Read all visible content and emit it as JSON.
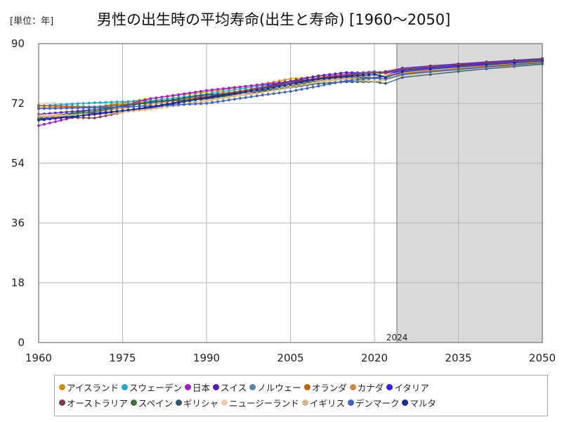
{
  "header": {
    "unit_label": "[単位：年]",
    "title": "男性の出生時の平均寿命(出生と寿命) [1960～2050]"
  },
  "chart_data": {
    "type": "line",
    "xlim": [
      1960,
      2050
    ],
    "ylim": [
      0,
      90
    ],
    "x_ticks": [
      1960,
      1975,
      1990,
      2005,
      2020,
      2035,
      2050
    ],
    "y_ticks": [
      0,
      18,
      36,
      54,
      72,
      90
    ],
    "grid": true,
    "forecast_region": {
      "start": 2024,
      "end": 2050,
      "label": "2024"
    },
    "legend_position": "bottom",
    "series": [
      {
        "name": "アイスランド",
        "color": "#c8901f",
        "points": [
          [
            1960,
            70.7
          ],
          [
            1970,
            70.8
          ],
          [
            1980,
            73.5
          ],
          [
            1990,
            75.4
          ],
          [
            2000,
            77.8
          ],
          [
            2005,
            79.4
          ],
          [
            2010,
            80.0
          ],
          [
            2015,
            80.8
          ],
          [
            2020,
            81.5
          ],
          [
            2022,
            81.0
          ],
          [
            2025,
            82.2
          ],
          [
            2030,
            82.9
          ],
          [
            2035,
            83.6
          ],
          [
            2040,
            84.2
          ],
          [
            2045,
            84.7
          ],
          [
            2050,
            85.3
          ]
        ]
      },
      {
        "name": "スウェーデン",
        "color": "#21a9c2",
        "points": [
          [
            1960,
            71.2
          ],
          [
            1970,
            72.2
          ],
          [
            1980,
            72.8
          ],
          [
            1990,
            74.8
          ],
          [
            2000,
            77.4
          ],
          [
            2005,
            78.4
          ],
          [
            2010,
            79.6
          ],
          [
            2015,
            80.4
          ],
          [
            2020,
            80.6
          ],
          [
            2022,
            81.3
          ],
          [
            2025,
            82.0
          ],
          [
            2030,
            82.7
          ],
          [
            2035,
            83.3
          ],
          [
            2040,
            83.9
          ],
          [
            2045,
            84.4
          ],
          [
            2050,
            85.0
          ]
        ]
      },
      {
        "name": "日本",
        "color": "#a020c8",
        "points": [
          [
            1960,
            65.3
          ],
          [
            1970,
            69.3
          ],
          [
            1980,
            73.4
          ],
          [
            1990,
            75.9
          ],
          [
            2000,
            77.7
          ],
          [
            2005,
            78.6
          ],
          [
            2010,
            79.6
          ],
          [
            2015,
            80.8
          ],
          [
            2020,
            81.6
          ],
          [
            2022,
            81.1
          ],
          [
            2025,
            81.9
          ],
          [
            2030,
            82.6
          ],
          [
            2035,
            83.3
          ],
          [
            2040,
            83.9
          ],
          [
            2045,
            84.5
          ],
          [
            2050,
            85.1
          ]
        ]
      },
      {
        "name": "スイス",
        "color": "#5a1bb4",
        "points": [
          [
            1960,
            68.7
          ],
          [
            1970,
            70.1
          ],
          [
            1980,
            72.3
          ],
          [
            1990,
            74.0
          ],
          [
            2000,
            76.9
          ],
          [
            2005,
            78.7
          ],
          [
            2010,
            80.3
          ],
          [
            2015,
            81.3
          ],
          [
            2020,
            81.1
          ],
          [
            2022,
            81.6
          ],
          [
            2025,
            82.6
          ],
          [
            2030,
            83.3
          ],
          [
            2035,
            83.9
          ],
          [
            2040,
            84.5
          ],
          [
            2045,
            85.0
          ],
          [
            2050,
            85.5
          ]
        ]
      },
      {
        "name": "ノルウェー",
        "color": "#5a84ac",
        "points": [
          [
            1960,
            71.3
          ],
          [
            1970,
            71.0
          ],
          [
            1980,
            72.3
          ],
          [
            1990,
            73.4
          ],
          [
            2000,
            76.0
          ],
          [
            2005,
            77.7
          ],
          [
            2010,
            78.9
          ],
          [
            2015,
            80.5
          ],
          [
            2020,
            81.5
          ],
          [
            2022,
            81.3
          ],
          [
            2025,
            82.2
          ],
          [
            2030,
            82.9
          ],
          [
            2035,
            83.5
          ],
          [
            2040,
            84.1
          ],
          [
            2045,
            84.6
          ],
          [
            2050,
            85.2
          ]
        ]
      },
      {
        "name": "オランダ",
        "color": "#b8660c",
        "points": [
          [
            1960,
            71.4
          ],
          [
            1970,
            70.7
          ],
          [
            1980,
            72.5
          ],
          [
            1990,
            73.8
          ],
          [
            2000,
            75.5
          ],
          [
            2005,
            77.2
          ],
          [
            2010,
            78.8
          ],
          [
            2015,
            79.9
          ],
          [
            2020,
            79.7
          ],
          [
            2022,
            80.2
          ],
          [
            2025,
            81.0
          ],
          [
            2030,
            81.8
          ],
          [
            2035,
            82.5
          ],
          [
            2040,
            83.2
          ],
          [
            2045,
            83.8
          ],
          [
            2050,
            84.4
          ]
        ]
      },
      {
        "name": "カナダ",
        "color": "#c58c4c",
        "points": [
          [
            1960,
            68.2
          ],
          [
            1970,
            69.4
          ],
          [
            1980,
            71.7
          ],
          [
            1990,
            74.4
          ],
          [
            2000,
            76.7
          ],
          [
            2005,
            77.8
          ],
          [
            2010,
            78.9
          ],
          [
            2015,
            79.6
          ],
          [
            2020,
            79.5
          ],
          [
            2022,
            79.3
          ],
          [
            2025,
            80.6
          ],
          [
            2030,
            81.4
          ],
          [
            2035,
            82.1
          ],
          [
            2040,
            82.8
          ],
          [
            2045,
            83.4
          ],
          [
            2050,
            84.0
          ]
        ]
      },
      {
        "name": "イタリア",
        "color": "#3020e0",
        "points": [
          [
            1960,
            67.2
          ],
          [
            1970,
            69.0
          ],
          [
            1980,
            70.6
          ],
          [
            1990,
            73.8
          ],
          [
            2000,
            76.6
          ],
          [
            2005,
            78.1
          ],
          [
            2010,
            79.5
          ],
          [
            2015,
            80.3
          ],
          [
            2020,
            79.7
          ],
          [
            2022,
            80.5
          ],
          [
            2025,
            81.9
          ],
          [
            2030,
            82.7
          ],
          [
            2035,
            83.4
          ],
          [
            2040,
            84.1
          ],
          [
            2045,
            84.7
          ],
          [
            2050,
            85.3
          ]
        ]
      },
      {
        "name": "オーストラリア",
        "color": "#7a3a50",
        "points": [
          [
            1960,
            67.9
          ],
          [
            1970,
            67.6
          ],
          [
            1980,
            71.0
          ],
          [
            1990,
            73.9
          ],
          [
            2000,
            76.6
          ],
          [
            2005,
            78.5
          ],
          [
            2010,
            79.5
          ],
          [
            2015,
            80.4
          ],
          [
            2020,
            81.2
          ],
          [
            2022,
            81.3
          ],
          [
            2025,
            82.3
          ],
          [
            2030,
            83.0
          ],
          [
            2035,
            83.6
          ],
          [
            2040,
            84.2
          ],
          [
            2045,
            84.8
          ],
          [
            2050,
            85.3
          ]
        ]
      },
      {
        "name": "スペイン",
        "color": "#3a6e3a",
        "points": [
          [
            1960,
            67.4
          ],
          [
            1970,
            69.6
          ],
          [
            1980,
            72.5
          ],
          [
            1990,
            73.3
          ],
          [
            2000,
            75.8
          ],
          [
            2005,
            77.0
          ],
          [
            2010,
            79.0
          ],
          [
            2015,
            80.1
          ],
          [
            2020,
            79.6
          ],
          [
            2022,
            80.4
          ],
          [
            2025,
            81.3
          ],
          [
            2030,
            82.1
          ],
          [
            2035,
            82.8
          ],
          [
            2040,
            83.5
          ],
          [
            2045,
            84.1
          ],
          [
            2050,
            84.7
          ]
        ]
      },
      {
        "name": "ギリシャ",
        "color": "#2e5a70",
        "points": [
          [
            1960,
            67.5
          ],
          [
            1970,
            70.1
          ],
          [
            1980,
            72.2
          ],
          [
            1990,
            74.6
          ],
          [
            2000,
            75.4
          ],
          [
            2005,
            76.8
          ],
          [
            2010,
            78.0
          ],
          [
            2015,
            78.5
          ],
          [
            2020,
            78.5
          ],
          [
            2022,
            78.0
          ],
          [
            2025,
            79.8
          ],
          [
            2030,
            80.7
          ],
          [
            2035,
            81.6
          ],
          [
            2040,
            82.4
          ],
          [
            2045,
            83.1
          ],
          [
            2050,
            83.8
          ]
        ]
      },
      {
        "name": "ニュージーランド",
        "color": "#f2c9a6",
        "points": [
          [
            1960,
            68.4
          ],
          [
            1970,
            68.5
          ],
          [
            1980,
            70.2
          ],
          [
            1990,
            72.5
          ],
          [
            2000,
            76.2
          ],
          [
            2005,
            77.9
          ],
          [
            2010,
            79.1
          ],
          [
            2015,
            79.9
          ],
          [
            2020,
            80.4
          ],
          [
            2022,
            80.5
          ],
          [
            2025,
            81.3
          ],
          [
            2030,
            82.1
          ],
          [
            2035,
            82.8
          ],
          [
            2040,
            83.5
          ],
          [
            2045,
            84.1
          ],
          [
            2050,
            84.7
          ]
        ]
      },
      {
        "name": "イギリス",
        "color": "#d0b888",
        "points": [
          [
            1960,
            67.9
          ],
          [
            1970,
            68.7
          ],
          [
            1980,
            70.4
          ],
          [
            1990,
            72.9
          ],
          [
            2000,
            75.3
          ],
          [
            2005,
            76.9
          ],
          [
            2010,
            78.5
          ],
          [
            2015,
            79.2
          ],
          [
            2020,
            78.6
          ],
          [
            2022,
            79.0
          ],
          [
            2025,
            80.4
          ],
          [
            2030,
            81.3
          ],
          [
            2035,
            82.1
          ],
          [
            2040,
            82.8
          ],
          [
            2045,
            83.5
          ],
          [
            2050,
            84.1
          ]
        ]
      },
      {
        "name": "デンマーク",
        "color": "#3c63c0",
        "points": [
          [
            1960,
            70.4
          ],
          [
            1970,
            70.7
          ],
          [
            1980,
            71.2
          ],
          [
            1990,
            72.0
          ],
          [
            2000,
            74.5
          ],
          [
            2005,
            75.6
          ],
          [
            2010,
            77.2
          ],
          [
            2015,
            78.8
          ],
          [
            2020,
            79.6
          ],
          [
            2022,
            79.4
          ],
          [
            2025,
            80.7
          ],
          [
            2030,
            81.5
          ],
          [
            2035,
            82.2
          ],
          [
            2040,
            82.9
          ],
          [
            2045,
            83.6
          ],
          [
            2050,
            84.2
          ]
        ]
      },
      {
        "name": "マルタ",
        "color": "#1a2c8c",
        "points": [
          [
            1960,
            66.9
          ],
          [
            1970,
            68.7
          ],
          [
            1980,
            70.9
          ],
          [
            1990,
            73.6
          ],
          [
            2000,
            76.2
          ],
          [
            2005,
            77.8
          ],
          [
            2010,
            79.3
          ],
          [
            2015,
            80.0
          ],
          [
            2020,
            80.7
          ],
          [
            2022,
            79.8
          ],
          [
            2025,
            81.5
          ],
          [
            2030,
            82.3
          ],
          [
            2035,
            83.0
          ],
          [
            2040,
            83.6
          ],
          [
            2045,
            84.2
          ],
          [
            2050,
            84.8
          ]
        ]
      }
    ]
  }
}
